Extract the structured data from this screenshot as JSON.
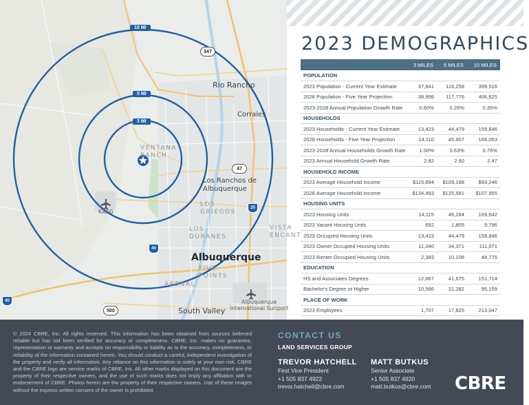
{
  "map": {
    "rings": [
      "10 MI",
      "5 MI",
      "3 MI"
    ],
    "labels": {
      "rio_rancho": "Rio Rancho",
      "corrales": "Corrales",
      "ventana_ranch": "VENTANA\nRANCH",
      "los_ranchos": "Los Ranchos de\nAlbuquerque",
      "los_griegos": "LOS\nGRIEGOS",
      "los_duranes": "LOS\nDURANES",
      "albuquerque": "Albuquerque",
      "five_points": "FIVE\nPOINTS",
      "arenal": "ARENAL",
      "south_valley": "South Valley",
      "sunport": "Albuquerque\nInternational Sunport",
      "kaeg": "KAEG",
      "vista_encanto": "VISTA\nENCANT"
    },
    "shields": [
      "347",
      "47",
      "500",
      "25",
      "40",
      "40"
    ]
  },
  "title": "2023 DEMOGRAPHICS",
  "table": {
    "columns": [
      "",
      "3 MILES",
      "5 MILES",
      "10 MILES"
    ],
    "sections": [
      {
        "name": "POPULATION",
        "rows": [
          [
            "2023 Population - Current Year Estimate",
            "37,841",
            "116,258",
            "399,516"
          ],
          [
            "2028 Population - Five Year Projection",
            "38,998",
            "117,776",
            "406,625"
          ],
          [
            "2023-2028 Annual Population Growth Rate",
            "0.60%",
            "0.26%",
            "0.35%"
          ]
        ]
      },
      {
        "name": "HOUSEHOLDS",
        "rows": [
          [
            "2023 Households - Current Year Estimate",
            "13,423",
            "44,479",
            "159,846"
          ],
          [
            "2028 Households - Five Year Projection",
            "14,110",
            "45,907",
            "166,053"
          ],
          [
            "2023-2028 Annual Households Growth Rate",
            "1.00%",
            "0.63%",
            "0.76%"
          ],
          [
            "2023 Annual Household Growth Rate",
            "2.82",
            "2.60",
            "2.47"
          ]
        ]
      },
      {
        "name": "HOUSEHOLD INCOME",
        "rows": [
          [
            "2023 Average Household Income",
            "$115,894",
            "$109,188",
            "$93,246"
          ],
          [
            "2028 Average Household Income",
            "$134,493",
            "$125,581",
            "$107,955"
          ]
        ]
      },
      {
        "name": "HOUSING UNITS",
        "rows": [
          [
            "2023 Housing Units",
            "14,115",
            "46,284",
            "169,642"
          ],
          [
            "2023 Vacant Housing Units",
            "692",
            "1,805",
            "9,796"
          ],
          [
            "2023 Occupied Housing Units",
            "13,423",
            "44,479",
            "159,846"
          ],
          [
            "2023 Owner Occupied Housing Units",
            "11,040",
            "34,371",
            "111,071"
          ],
          [
            "2023 Renter Occupied Housing Units",
            "2,383",
            "10,108",
            "48,775"
          ]
        ]
      },
      {
        "name": "EDUCATION",
        "rows": [
          [
            "HS and Associates Degrees",
            "12,667",
            "41,675",
            "151,714"
          ],
          [
            "Bachelor's Degree or Higher",
            "10,566",
            "31,282",
            "95,159"
          ]
        ]
      },
      {
        "name": "PLACE OF WORK",
        "rows": [
          [
            "2023 Employees",
            "1,707",
            "17,825",
            "213,047"
          ]
        ]
      }
    ]
  },
  "footer": {
    "disclaimer": "© 2024 CBRE, Inc. All rights reserved. This information has been obtained from sources believed reliable but has not been verified for accuracy or completeness. CBRE, Inc. makes no guarantee, representation or warranty and accepts no responsibility or liability as to the accuracy, completeness, or reliability of the information contained herein. You should conduct a careful, independent investigation of the property and verify all information. Any reliance on this information is solely at your own risk. CBRE and the CBRE logo are service marks of CBRE, Inc. All other marks displayed on this document are the property of their respective owners, and the use of such marks does not imply any affiliation with or endorsement of CBRE. Photos herein are the property of their respective owners. Use of these images without the express written consent of the owner is prohibited.",
    "contact_title": "CONTACT US",
    "group": "LAND SERVICES GROUP",
    "contacts": [
      {
        "name": "TREVOR HATCHELL",
        "title": "First Vice President",
        "phone": "+1 505 837 4922",
        "email": "trevor.hatchell@cbre.com"
      },
      {
        "name": "MATT BUTKUS",
        "title": "Senior Associate",
        "phone": "+1 505 837 4920",
        "email": "matt.butkus@cbre.com"
      }
    ],
    "logo": "CBRE"
  }
}
